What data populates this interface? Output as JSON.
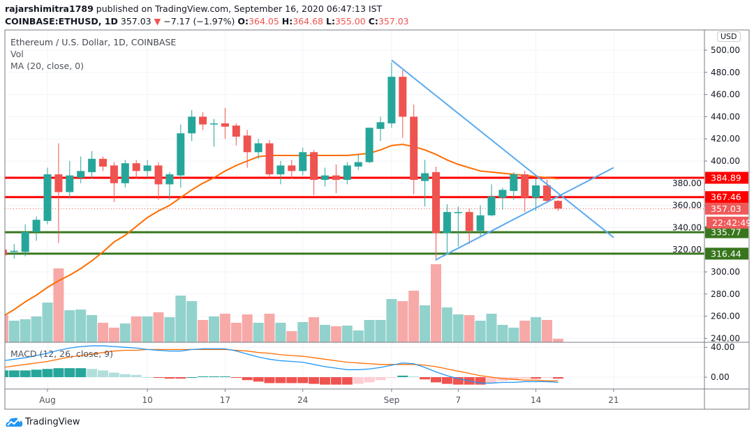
{
  "header": {
    "author": "rajarshimitra1789",
    "published": "published on TradingView.com, September 16, 2020 06:47:13 IST",
    "symbol": "COINBASE:ETHUSD, 1D",
    "last": "357.03",
    "change": "−7.17 (−1.97%)",
    "o_label": "O:",
    "o": "364.05",
    "h_label": "H:",
    "h": "364.68",
    "l_label": "L:",
    "l": "355.00",
    "c_label": "C:",
    "c": "357.03"
  },
  "legend": {
    "title": "Ethereum / U.S. Dollar, 1D, COINBASE",
    "vol": "Vol",
    "ma": "MA (20, close, 0)",
    "macd": "MACD (12, 26, close, 9)"
  },
  "currency": "USD",
  "footer": {
    "brand": "TradingView"
  },
  "colors": {
    "up": "#26a69a",
    "down": "#ef5350",
    "resistance": "#ff0000",
    "support": "#38761d",
    "trend": "#5aaaf0",
    "ma": "#ff6d00",
    "macd": "#2196f3",
    "signal": "#ff6d00"
  },
  "chart_data": {
    "type": "candlestick",
    "dates": [
      "Jul 28",
      "Jul 29",
      "Jul 30",
      "Jul 31",
      "Aug 1",
      "Aug 2",
      "Aug 3",
      "Aug 4",
      "Aug 5",
      "Aug 6",
      "Aug 7",
      "Aug 8",
      "Aug 9",
      "Aug 10",
      "Aug 11",
      "Aug 12",
      "Aug 13",
      "Aug 14",
      "Aug 15",
      "Aug 16",
      "Aug 17",
      "Aug 18",
      "Aug 19",
      "Aug 20",
      "Aug 21",
      "Aug 22",
      "Aug 23",
      "Aug 24",
      "Aug 25",
      "Aug 26",
      "Aug 27",
      "Aug 28",
      "Aug 29",
      "Aug 30",
      "Aug 31",
      "Sep 1",
      "Sep 2",
      "Sep 3",
      "Sep 4",
      "Sep 5",
      "Sep 6",
      "Sep 7",
      "Sep 8",
      "Sep 9",
      "Sep 10",
      "Sep 11",
      "Sep 12",
      "Sep 13",
      "Sep 14",
      "Sep 15",
      "Sep 16"
    ],
    "ohlc": [
      [
        320,
        321,
        313,
        315
      ],
      [
        318,
        325,
        312,
        319
      ],
      [
        318,
        343,
        314,
        336
      ],
      [
        336,
        350,
        328,
        347
      ],
      [
        346,
        394,
        343,
        388
      ],
      [
        388,
        416,
        326,
        372
      ],
      [
        372,
        400,
        366,
        387
      ],
      [
        385,
        404,
        380,
        391
      ],
      [
        390,
        409,
        384,
        402
      ],
      [
        402,
        404,
        391,
        395
      ],
      [
        396,
        399,
        363,
        380
      ],
      [
        380,
        401,
        376,
        398
      ],
      [
        398,
        401,
        384,
        391
      ],
      [
        391,
        401,
        385,
        396
      ],
      [
        396,
        399,
        365,
        379
      ],
      [
        379,
        390,
        365,
        388
      ],
      [
        387,
        433,
        376,
        425
      ],
      [
        425,
        446,
        418,
        440
      ],
      [
        440,
        444,
        428,
        433
      ],
      [
        433,
        438,
        413,
        434
      ],
      [
        434,
        448,
        420,
        431
      ],
      [
        432,
        434,
        414,
        422
      ],
      [
        423,
        428,
        394,
        408
      ],
      [
        408,
        420,
        402,
        416
      ],
      [
        416,
        419,
        385,
        388
      ],
      [
        388,
        400,
        379,
        396
      ],
      [
        396,
        401,
        384,
        391
      ],
      [
        391,
        412,
        387,
        408
      ],
      [
        408,
        410,
        369,
        383
      ],
      [
        383,
        394,
        377,
        387
      ],
      [
        387,
        397,
        371,
        383
      ],
      [
        383,
        399,
        379,
        396
      ],
      [
        395,
        406,
        392,
        399
      ],
      [
        399,
        430,
        398,
        430
      ],
      [
        429,
        440,
        418,
        435
      ],
      [
        434,
        489,
        430,
        476
      ],
      [
        476,
        482,
        421,
        440
      ],
      [
        440,
        451,
        370,
        383
      ],
      [
        382,
        401,
        359,
        389
      ],
      [
        390,
        395,
        310,
        335
      ],
      [
        335,
        361,
        316,
        354
      ],
      [
        353,
        359,
        323,
        354
      ],
      [
        354,
        357,
        325,
        337
      ],
      [
        337,
        360,
        331,
        351
      ],
      [
        351,
        379,
        350,
        368
      ],
      [
        367,
        376,
        356,
        374
      ],
      [
        373,
        390,
        365,
        388
      ],
      [
        388,
        391,
        354,
        367
      ],
      [
        367,
        384,
        355,
        378
      ],
      [
        378,
        383,
        362,
        364
      ],
      [
        364.05,
        364.68,
        355,
        357.03
      ]
    ],
    "volume_relative": [
      39,
      31,
      33,
      37,
      57,
      106,
      46,
      47,
      39,
      28,
      21,
      27,
      37,
      37,
      43,
      36,
      67,
      59,
      32,
      37,
      41,
      28,
      40,
      28,
      41,
      28,
      16,
      29,
      36,
      25,
      23,
      24,
      17,
      32,
      32,
      62,
      59,
      74,
      53,
      112,
      50,
      40,
      39,
      31,
      41,
      25,
      21,
      31,
      36,
      32,
      5
    ],
    "ma20": [
      260,
      266,
      273,
      279,
      286,
      292,
      297,
      303,
      310,
      318,
      327,
      333,
      341,
      349,
      355,
      360,
      367,
      374,
      380,
      385,
      391,
      396,
      400,
      404,
      405,
      405,
      405,
      405,
      405,
      405,
      405,
      405,
      406,
      407,
      410,
      414,
      415,
      413,
      410,
      406,
      401,
      397,
      394,
      391,
      390,
      389,
      388,
      387,
      386,
      385,
      384
    ],
    "macd": [
      22,
      24,
      26,
      29,
      32,
      36,
      39,
      41,
      42,
      42,
      41,
      40,
      39,
      37,
      36,
      35,
      35,
      37,
      38,
      38,
      38,
      35,
      31,
      27,
      24,
      22,
      21,
      20,
      17,
      14,
      12,
      10,
      10,
      11,
      13,
      16,
      19,
      18,
      13,
      7,
      2,
      -2,
      -5,
      -8,
      -8,
      -7,
      -7,
      -6,
      -6,
      -6,
      -7
    ],
    "signal": [
      13,
      15,
      17,
      19,
      21,
      24,
      27,
      29,
      31,
      33,
      35,
      36,
      36,
      37,
      37,
      37,
      37,
      37,
      37,
      37,
      37,
      36,
      35,
      33,
      32,
      30,
      29,
      28,
      26,
      24,
      22,
      20,
      19,
      18,
      17,
      17,
      17,
      17,
      16,
      14,
      11,
      8,
      5,
      2,
      0,
      -2,
      -3,
      -4,
      -4,
      -5,
      -5
    ],
    "horizontal_levels": [
      {
        "price": 384.89,
        "label": "384.89",
        "kind": "resistance"
      },
      {
        "price": 367.46,
        "label": "367.46",
        "kind": "resistance"
      },
      {
        "price": 335.77,
        "label": "335.77",
        "kind": "support"
      },
      {
        "price": 316.44,
        "label": "316.44",
        "kind": "support"
      }
    ],
    "last_price": {
      "price": 357.03,
      "label": "357.03",
      "countdown": "22:42:49"
    },
    "trendlines": [
      {
        "from": [
          "Sep 1",
          491
        ],
        "to": [
          "Sep 21",
          331
        ]
      },
      {
        "from": [
          "Sep 5",
          311
        ],
        "to": [
          "Sep 21",
          394
        ]
      }
    ],
    "y_ticks": [
      "500.00",
      "480.00",
      "460.00",
      "440.00",
      "420.00",
      "400.00",
      "380.00",
      "360.00",
      "340.00",
      "320.00",
      "300.00",
      "280.00",
      "260.00",
      "240.00"
    ],
    "y_tick_values": [
      500,
      480,
      460,
      440,
      420,
      400,
      380,
      360,
      340,
      320,
      300,
      280,
      260,
      240
    ],
    "macd_ticks": [
      "40.00",
      "0.00"
    ],
    "macd_tick_values": [
      40,
      0
    ],
    "x_ticks": [
      {
        "label": "Aug",
        "index": 4
      },
      {
        "label": "10",
        "index": 13
      },
      {
        "label": "17",
        "index": 20
      },
      {
        "label": "24",
        "index": 27
      },
      {
        "label": "Sep",
        "index": 35
      },
      {
        "label": "7",
        "index": 41
      },
      {
        "label": "14",
        "index": 48
      },
      {
        "label": "21",
        "index": 55
      }
    ]
  }
}
